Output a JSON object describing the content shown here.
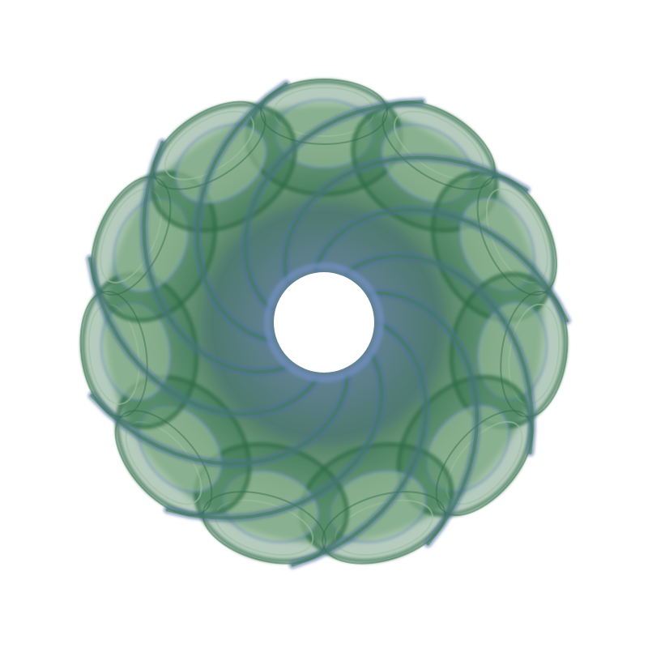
{
  "image": {
    "background_color": "#ffffff",
    "palette": {
      "deep_green": "#2f6b45",
      "mid_green": "#3f7f55",
      "pale_green": "#9cbf9d",
      "slate_blue": "#4a6f9a",
      "steel_blue": "#6f8fbf",
      "hole": "#ffffff"
    },
    "lobe_count": 11
  }
}
